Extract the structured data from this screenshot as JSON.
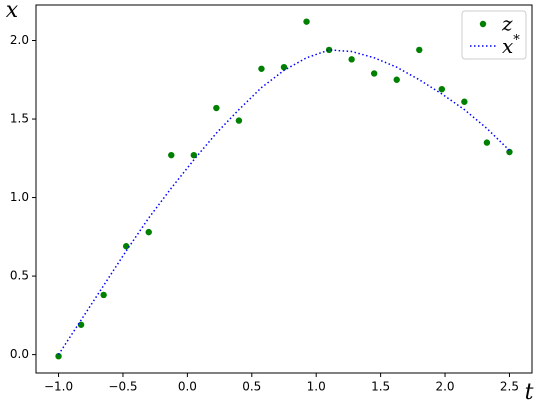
{
  "chart_data": {
    "type": "scatter",
    "x_label": "t",
    "y_label": "x",
    "xlim": [
      -1.175,
      2.675
    ],
    "ylim": [
      -0.117,
      2.226
    ],
    "xticks": [
      {
        "value": -1,
        "label": "−1.0"
      },
      {
        "value": -0.5,
        "label": "−0.5"
      },
      {
        "value": 0,
        "label": "0.0"
      },
      {
        "value": 0.5,
        "label": "0.5"
      },
      {
        "value": 1,
        "label": "1.0"
      },
      {
        "value": 1.5,
        "label": "1.5"
      },
      {
        "value": 2,
        "label": "2.0"
      },
      {
        "value": 2.5,
        "label": "2.5"
      }
    ],
    "yticks": [
      {
        "value": 0,
        "label": "0.0"
      },
      {
        "value": 0.5,
        "label": "0.5"
      },
      {
        "value": 1,
        "label": "1.0"
      },
      {
        "value": 1.5,
        "label": "1.5"
      },
      {
        "value": 2,
        "label": "2.0"
      }
    ],
    "grid": false,
    "legend": "upper right",
    "series": [
      {
        "name": "z",
        "color": "#008000",
        "style": "markers",
        "x": [
          -1,
          -0.825,
          -0.65,
          -0.475,
          -0.3,
          -0.125,
          0.05,
          0.225,
          0.4,
          0.575,
          0.75,
          0.925,
          1.1,
          1.275,
          1.45,
          1.625,
          1.8,
          1.975,
          2.15,
          2.325,
          2.5
        ],
        "values": [
          -0.01,
          0.19,
          0.38,
          0.69,
          0.78,
          1.27,
          1.27,
          1.57,
          1.49,
          1.82,
          1.83,
          2.12,
          1.94,
          1.88,
          1.79,
          1.75,
          1.94,
          1.69,
          1.61,
          1.35,
          1.29
        ]
      },
      {
        "name": "x*",
        "color": "#0000ff",
        "style": "dotted",
        "x": [
          -1,
          -0.825,
          -0.65,
          -0.475,
          -0.3,
          -0.125,
          0.05,
          0.225,
          0.4,
          0.575,
          0.75,
          0.925,
          1.1,
          1.275,
          1.45,
          1.625,
          1.8,
          1.975,
          2.15,
          2.325,
          2.5
        ],
        "values": [
          0.0,
          0.22,
          0.44,
          0.66,
          0.87,
          1.06,
          1.24,
          1.41,
          1.56,
          1.7,
          1.81,
          1.89,
          1.94,
          1.93,
          1.89,
          1.83,
          1.75,
          1.66,
          1.56,
          1.44,
          1.3
        ]
      }
    ]
  }
}
